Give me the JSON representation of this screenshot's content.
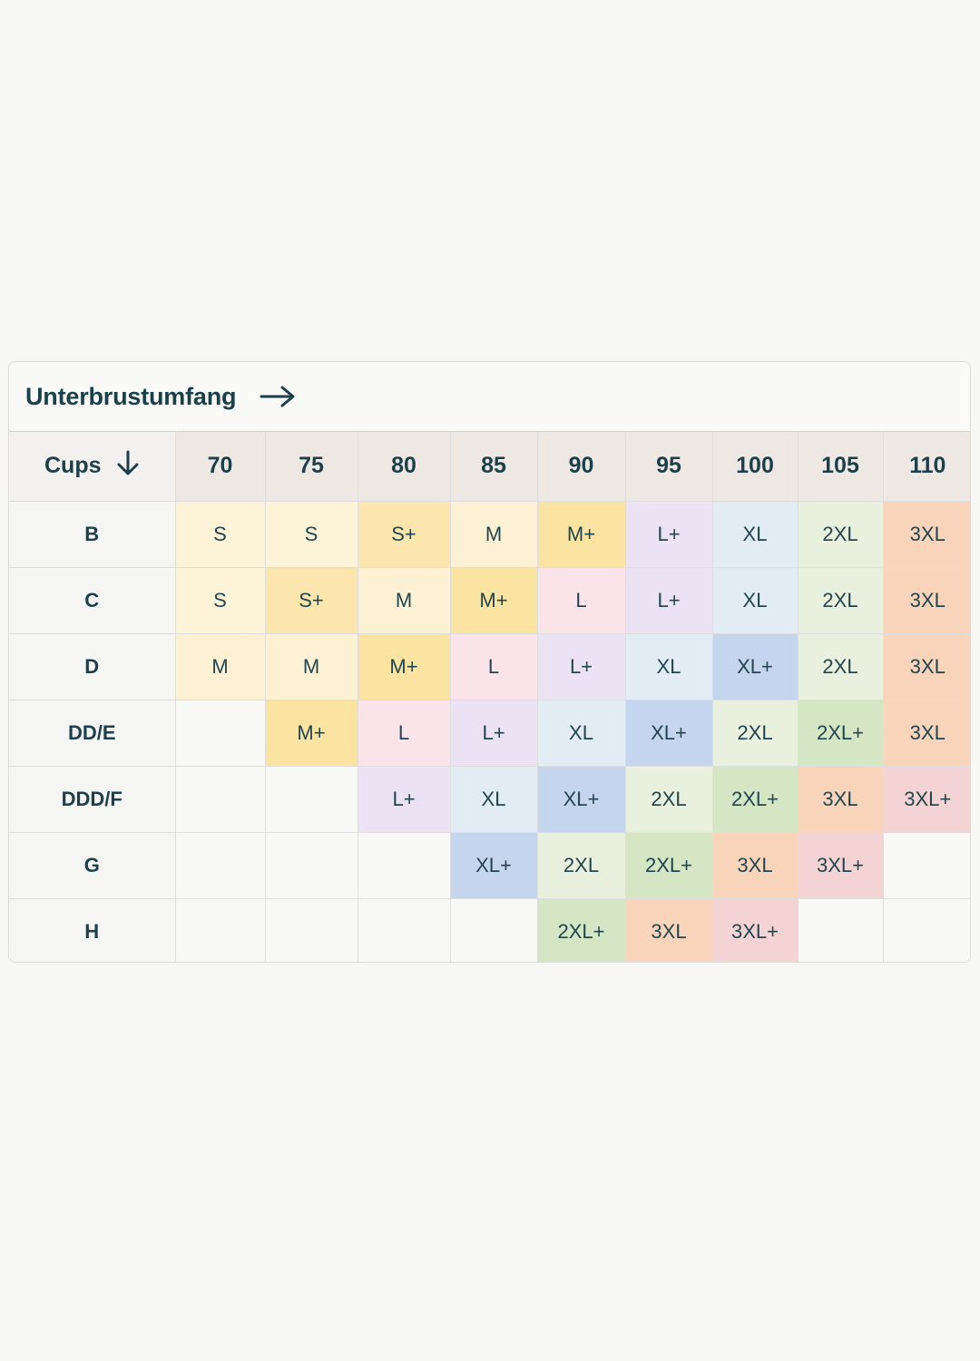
{
  "header": {
    "title": "Unterbrustumfang",
    "arrow_icon": "arrow-right-icon"
  },
  "table": {
    "corner_label": "Cups",
    "corner_icon": "arrow-down-icon",
    "columns": [
      "70",
      "75",
      "80",
      "85",
      "90",
      "95",
      "100",
      "105",
      "110"
    ],
    "rows": [
      {
        "cup": "B",
        "cells": [
          "S",
          "S",
          "S+",
          "M",
          "M+",
          "L+",
          "XL",
          "2XL",
          "3XL"
        ]
      },
      {
        "cup": "C",
        "cells": [
          "S",
          "S+",
          "M",
          "M+",
          "L",
          "L+",
          "XL",
          "2XL",
          "3XL"
        ]
      },
      {
        "cup": "D",
        "cells": [
          "M",
          "M",
          "M+",
          "L",
          "L+",
          "XL",
          "XL+",
          "2XL",
          "3XL"
        ]
      },
      {
        "cup": "DD/E",
        "cells": [
          "",
          "M+",
          "L",
          "L+",
          "XL",
          "XL+",
          "2XL",
          "2XL+",
          "3XL"
        ]
      },
      {
        "cup": "DDD/F",
        "cells": [
          "",
          "",
          "L+",
          "XL",
          "XL+",
          "2XL",
          "2XL+",
          "3XL",
          "3XL+"
        ]
      },
      {
        "cup": "G",
        "cells": [
          "",
          "",
          "",
          "XL+",
          "2XL",
          "2XL+",
          "3XL",
          "3XL+",
          ""
        ]
      },
      {
        "cup": "H",
        "cells": [
          "",
          "",
          "",
          "",
          "2XL+",
          "3XL",
          "3XL+",
          "",
          ""
        ]
      }
    ]
  },
  "size_colors": {
    "S": "#fdf3d9",
    "S+": "#fbe6ad",
    "M": "#fdf1d4",
    "M+": "#fbe4a2",
    "L": "#fbe3ea",
    "L+": "#ebe2f3",
    "XL": "#e1ecf5",
    "XL+": "#c6d5ee",
    "2XL": "#e9f1de",
    "2XL+": "#d5e6c5",
    "3XL": "#f8d4bb",
    "3XL+": "#f3d3d3"
  }
}
